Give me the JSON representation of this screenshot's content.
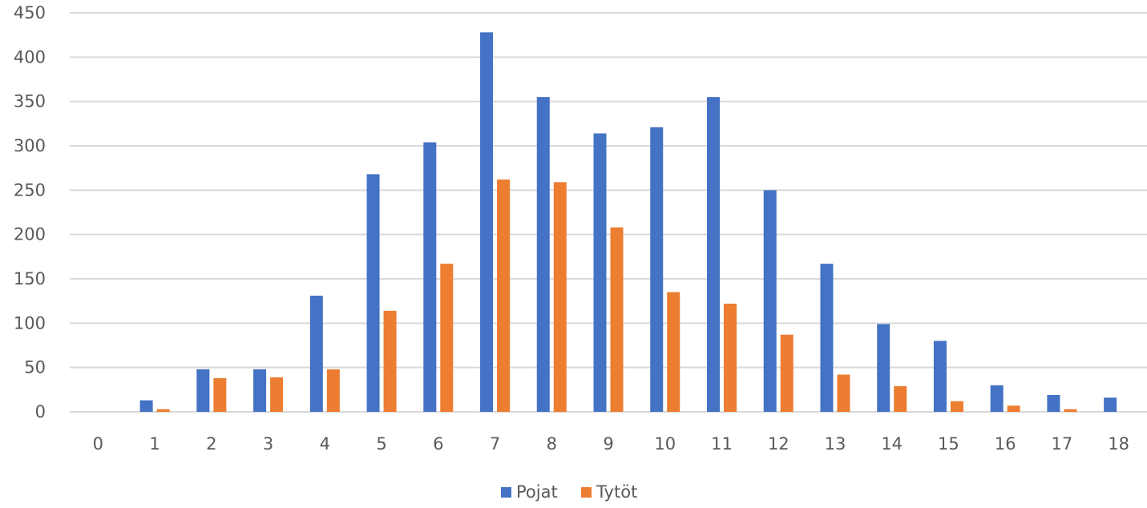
{
  "chart_data": {
    "type": "bar",
    "categories": [
      "0",
      "1",
      "2",
      "3",
      "4",
      "5",
      "6",
      "7",
      "8",
      "9",
      "10",
      "11",
      "12",
      "13",
      "14",
      "15",
      "16",
      "17",
      "18"
    ],
    "series": [
      {
        "name": "Pojat",
        "color": "#4472c4",
        "values": [
          0,
          13,
          48,
          48,
          131,
          268,
          304,
          428,
          355,
          314,
          321,
          355,
          250,
          167,
          99,
          80,
          30,
          19,
          16
        ]
      },
      {
        "name": "Tytöt",
        "color": "#ed7d31",
        "values": [
          0,
          3,
          38,
          39,
          48,
          114,
          167,
          262,
          259,
          208,
          135,
          122,
          87,
          42,
          29,
          12,
          7,
          3,
          0
        ]
      }
    ],
    "ylim": [
      0,
      450
    ],
    "yticks": [
      0,
      50,
      100,
      150,
      200,
      250,
      300,
      350,
      400,
      450
    ],
    "grid": true,
    "legend_position": "bottom"
  }
}
